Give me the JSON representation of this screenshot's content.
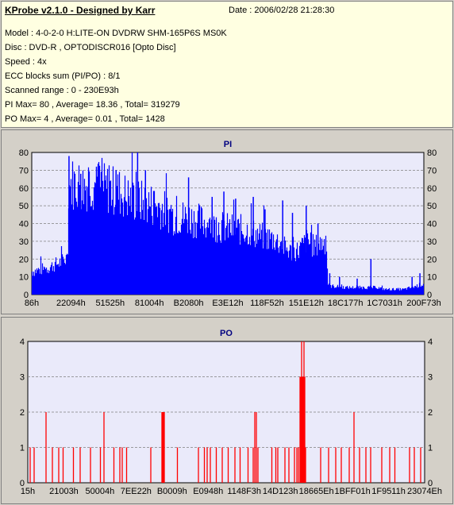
{
  "header": {
    "app_title": "KProbe v2.1.0 - Designed by Karr",
    "date": "Date : 2006/02/28 21:28:30",
    "model": "Model : 4-0-2-0 H:LITE-ON DVDRW SHM-165P6S MS0K",
    "disc": "Disc : DVD-R , OPTODISCR016 [Opto Disc]",
    "speed": "Speed : 4x",
    "ecc": "ECC blocks sum (PI/PO) : 8/1",
    "range": "Scanned range : 0 - 230E93h",
    "pi_stats": "PI Max= 80 , Average= 18.36 , Total= 319279",
    "po_stats": "PO Max= 4 , Average= 0.01 , Total= 1428"
  },
  "colors": {
    "plot_bg": "#eaeafa",
    "pi_bar": "#0000ff",
    "po_bar": "#ff0000",
    "grid": "#808080"
  },
  "chart_data": [
    {
      "type": "bar",
      "title": "PI",
      "xlabel": "",
      "ylabel": "",
      "ylim": [
        0,
        80
      ],
      "yticks": [
        0,
        10,
        20,
        30,
        40,
        50,
        60,
        70,
        80
      ],
      "xticks": [
        "86h",
        "22094h",
        "51525h",
        "81004h",
        "B2080h",
        "E3E12h",
        "118F52h",
        "151E12h",
        "18C177h",
        "1C7031h",
        "200F73h"
      ],
      "x_range_fraction": [
        0,
        1
      ],
      "profile": [
        [
          0.0,
          13
        ],
        [
          0.02,
          14
        ],
        [
          0.04,
          15
        ],
        [
          0.06,
          17
        ],
        [
          0.08,
          19
        ],
        [
          0.09,
          21
        ],
        [
          0.095,
          62
        ],
        [
          0.11,
          63
        ],
        [
          0.13,
          61
        ],
        [
          0.15,
          63
        ],
        [
          0.18,
          60
        ],
        [
          0.22,
          58
        ],
        [
          0.25,
          54
        ],
        [
          0.28,
          52
        ],
        [
          0.32,
          50
        ],
        [
          0.36,
          44
        ],
        [
          0.4,
          43
        ],
        [
          0.45,
          40
        ],
        [
          0.5,
          37
        ],
        [
          0.55,
          36
        ],
        [
          0.58,
          33
        ],
        [
          0.62,
          31
        ],
        [
          0.64,
          27
        ],
        [
          0.66,
          24
        ],
        [
          0.68,
          25
        ],
        [
          0.7,
          30
        ],
        [
          0.72,
          27
        ],
        [
          0.74,
          29
        ],
        [
          0.75,
          30
        ],
        [
          0.755,
          5
        ],
        [
          0.8,
          4
        ],
        [
          0.85,
          4
        ],
        [
          0.88,
          4
        ],
        [
          0.9,
          3
        ],
        [
          0.95,
          3
        ],
        [
          1.0,
          6
        ]
      ],
      "spikes": [
        [
          0.095,
          78
        ],
        [
          0.125,
          68
        ],
        [
          0.165,
          72
        ],
        [
          0.215,
          70
        ],
        [
          0.27,
          80
        ],
        [
          0.29,
          70
        ],
        [
          0.4,
          66
        ],
        [
          0.46,
          55
        ],
        [
          0.49,
          58
        ],
        [
          0.52,
          54
        ],
        [
          0.565,
          55
        ],
        [
          0.595,
          48
        ],
        [
          0.64,
          53
        ],
        [
          0.665,
          46
        ],
        [
          0.7,
          50
        ],
        [
          0.73,
          40
        ],
        [
          0.76,
          12
        ],
        [
          0.785,
          10
        ],
        [
          0.83,
          9
        ],
        [
          0.865,
          20
        ],
        [
          0.97,
          10
        ],
        [
          0.99,
          12
        ]
      ]
    },
    {
      "type": "bar",
      "title": "PO",
      "xlabel": "",
      "ylabel": "",
      "ylim": [
        0,
        4
      ],
      "yticks": [
        0,
        1,
        2,
        3,
        4
      ],
      "xticks": [
        "15h",
        "21003h",
        "50004h",
        "7EE22h",
        "B0009h",
        "E0948h",
        "1148F3h",
        "14D123h",
        "18665Eh",
        "1BFF01h",
        "1F9511h",
        "23074Eh"
      ],
      "x_range_fraction": [
        0,
        1
      ],
      "values": [
        [
          0.006,
          1
        ],
        [
          0.016,
          1
        ],
        [
          0.046,
          2
        ],
        [
          0.062,
          1
        ],
        [
          0.078,
          1
        ],
        [
          0.089,
          1
        ],
        [
          0.115,
          1
        ],
        [
          0.132,
          1
        ],
        [
          0.158,
          1
        ],
        [
          0.183,
          1
        ],
        [
          0.192,
          2
        ],
        [
          0.217,
          1
        ],
        [
          0.232,
          1
        ],
        [
          0.238,
          1
        ],
        [
          0.249,
          1
        ],
        [
          0.31,
          1
        ],
        [
          0.338,
          2
        ],
        [
          0.34,
          2
        ],
        [
          0.342,
          2
        ],
        [
          0.344,
          2
        ],
        [
          0.377,
          1
        ],
        [
          0.43,
          1
        ],
        [
          0.445,
          1
        ],
        [
          0.452,
          1
        ],
        [
          0.46,
          1
        ],
        [
          0.475,
          1
        ],
        [
          0.49,
          1
        ],
        [
          0.505,
          1
        ],
        [
          0.522,
          1
        ],
        [
          0.535,
          1
        ],
        [
          0.555,
          1
        ],
        [
          0.568,
          1
        ],
        [
          0.572,
          2
        ],
        [
          0.576,
          2
        ],
        [
          0.58,
          1
        ],
        [
          0.615,
          1
        ],
        [
          0.625,
          1
        ],
        [
          0.63,
          1
        ],
        [
          0.648,
          1
        ],
        [
          0.658,
          1
        ],
        [
          0.672,
          1
        ],
        [
          0.678,
          1
        ],
        [
          0.682,
          1
        ],
        [
          0.686,
          3
        ],
        [
          0.688,
          3
        ],
        [
          0.69,
          4
        ],
        [
          0.692,
          3
        ],
        [
          0.694,
          3
        ],
        [
          0.696,
          4
        ],
        [
          0.698,
          3
        ],
        [
          0.7,
          1
        ],
        [
          0.738,
          1
        ],
        [
          0.758,
          1
        ],
        [
          0.776,
          1
        ],
        [
          0.79,
          1
        ],
        [
          0.81,
          1
        ],
        [
          0.822,
          2
        ],
        [
          0.836,
          1
        ],
        [
          0.852,
          1
        ],
        [
          0.864,
          1
        ],
        [
          0.892,
          1
        ],
        [
          0.912,
          1
        ],
        [
          0.925,
          1
        ],
        [
          0.962,
          1
        ],
        [
          0.974,
          1
        ],
        [
          0.99,
          1
        ]
      ]
    }
  ]
}
